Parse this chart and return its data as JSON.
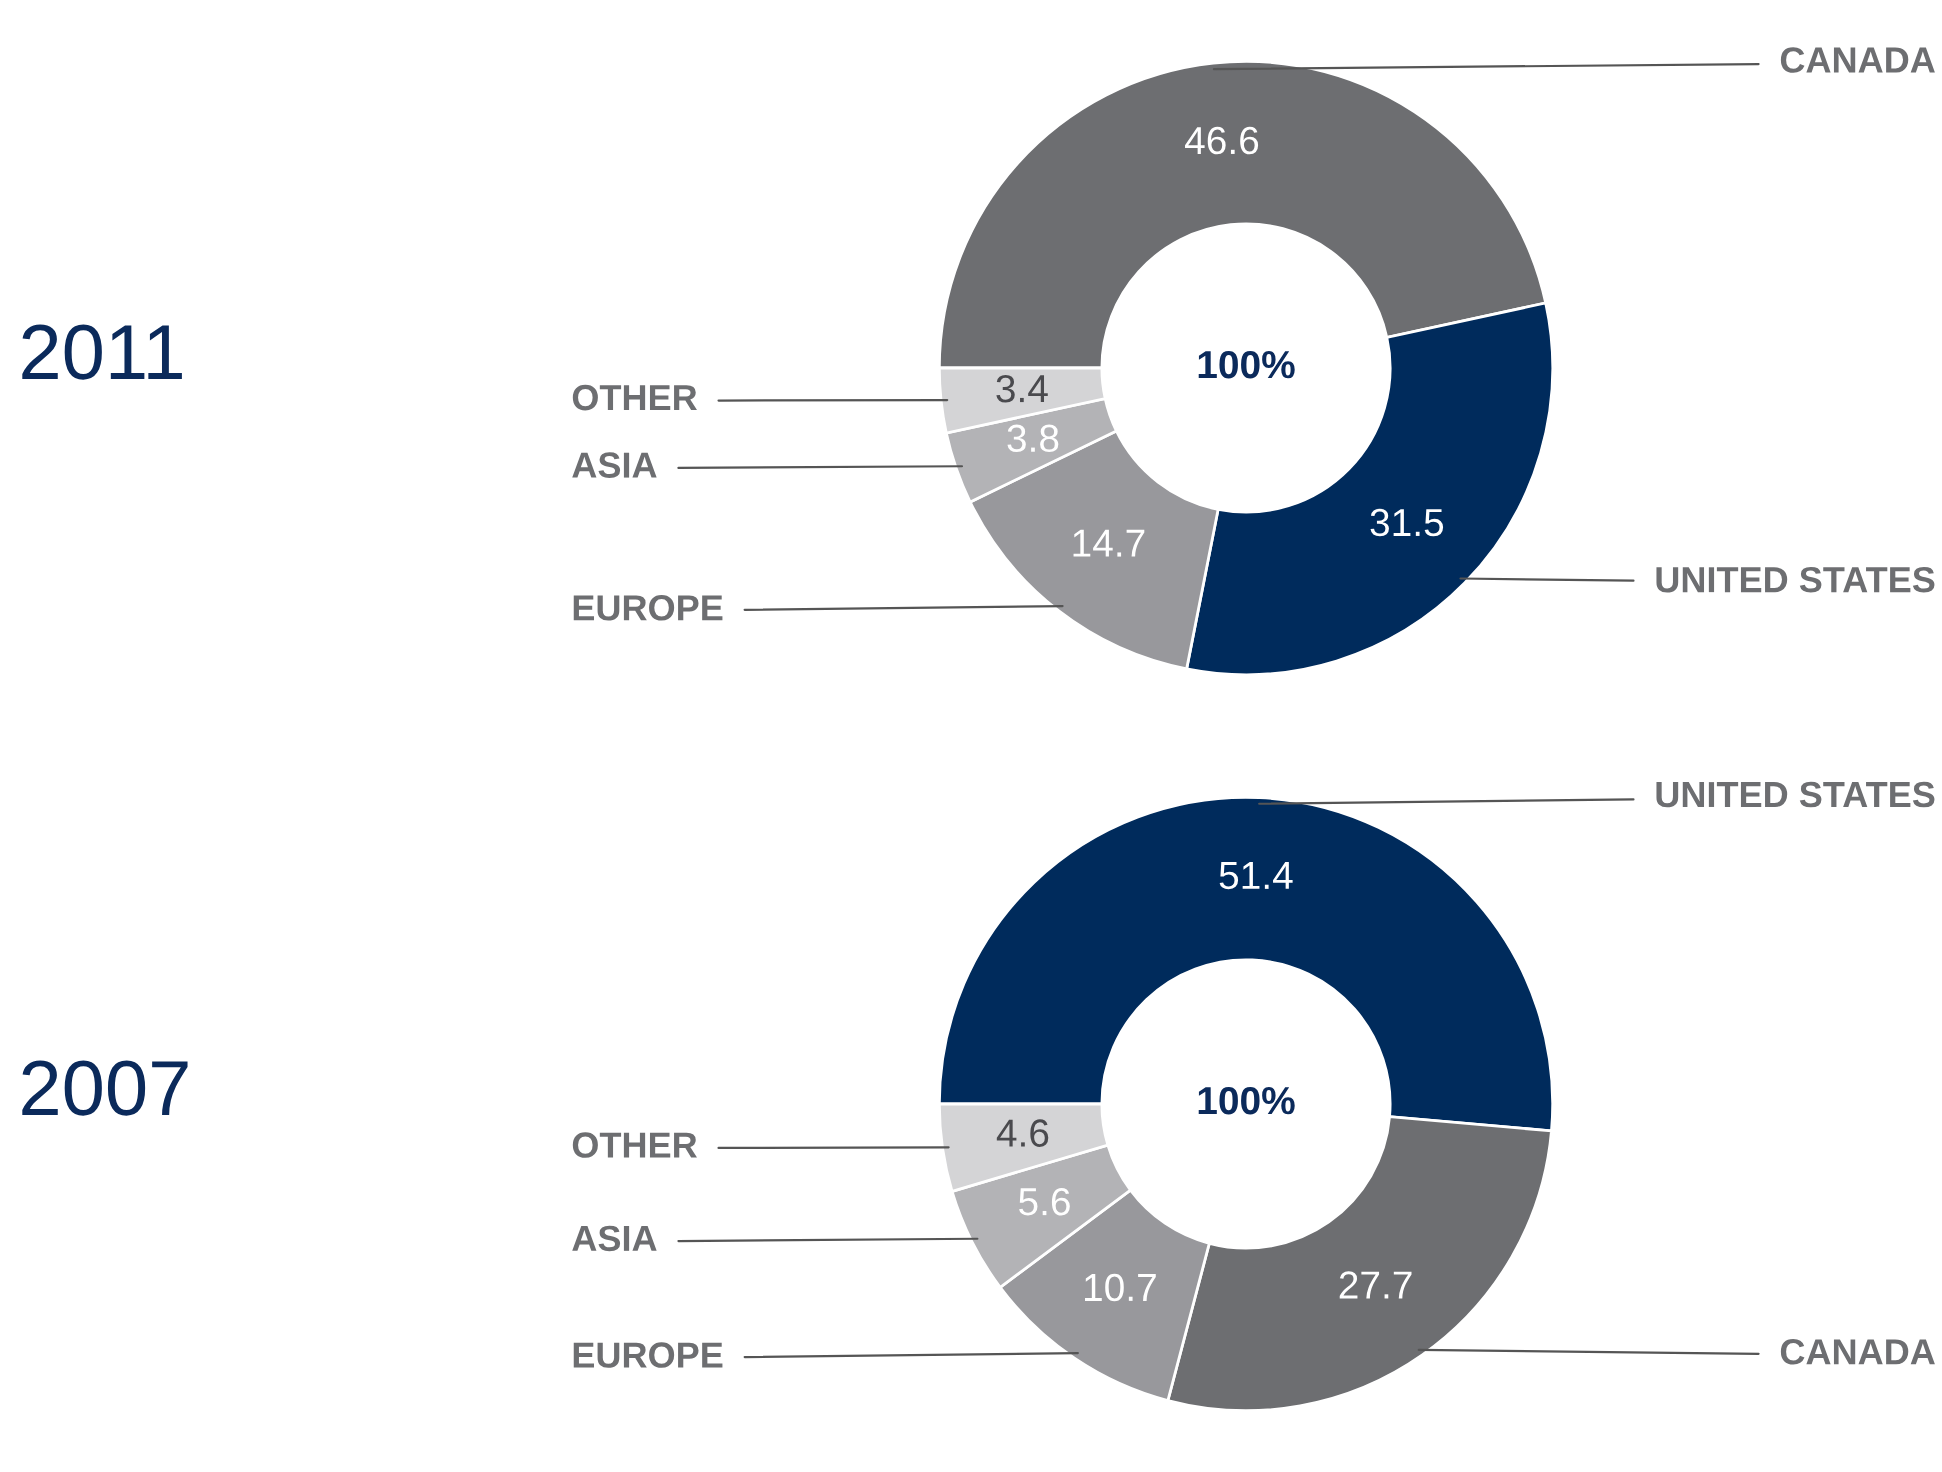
{
  "chart_data": [
    {
      "type": "donut",
      "title": "2011",
      "categories": [
        "CANADA",
        "UNITED STATES",
        "EUROPE",
        "ASIA",
        "OTHER"
      ],
      "values": [
        46.6,
        31.5,
        14.7,
        3.8,
        3.4
      ],
      "colors": [
        "#6d6e71",
        "#002b5c",
        "#98989c",
        "#b3b3b6",
        "#d4d4d6"
      ],
      "data_labels": true,
      "annotations": [
        "100%"
      ]
    },
    {
      "type": "donut",
      "title": "2007",
      "categories": [
        "UNITED STATES",
        "CANADA",
        "EUROPE",
        "ASIA",
        "OTHER"
      ],
      "values": [
        51.4,
        27.7,
        10.7,
        5.6,
        4.6
      ],
      "colors": [
        "#002b5c",
        "#6d6e71",
        "#98989c",
        "#b3b3b6",
        "#d4d4d6"
      ],
      "data_labels": true,
      "annotations": [
        "100%"
      ]
    }
  ]
}
